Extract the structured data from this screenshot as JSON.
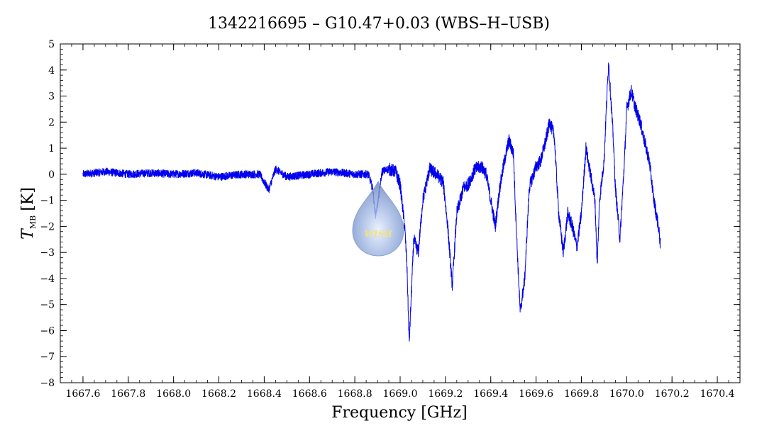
{
  "chart_data": {
    "type": "line",
    "title": "1342216695 – G10.47+0.03 (WBS–H–USB)",
    "xlabel": "Frequency [GHz]",
    "ylabel_main": "T",
    "ylabel_sub": "MB",
    "ylabel_unit": "[K]",
    "xlim": [
      1667.5,
      1670.5
    ],
    "ylim": [
      -8,
      5
    ],
    "x_ticks": [
      1667.6,
      1667.8,
      1668.0,
      1668.2,
      1668.4,
      1668.6,
      1668.8,
      1669.0,
      1669.2,
      1669.4,
      1669.6,
      1669.8,
      1670.0,
      1670.2,
      1670.4
    ],
    "x_tick_labels": [
      "1667.6",
      "1667.8",
      "1668.0",
      "1668.2",
      "1668.4",
      "1668.6",
      "1668.8",
      "1669.0",
      "1669.2",
      "1669.4",
      "1669.6",
      "1669.8",
      "1670.0",
      "1670.2",
      "1670.4"
    ],
    "y_ticks": [
      -8,
      -7,
      -6,
      -5,
      -4,
      -3,
      -2,
      -1,
      0,
      1,
      2,
      3,
      4,
      5
    ],
    "y_tick_labels": [
      "−8",
      "−7",
      "−6",
      "−5",
      "−4",
      "−3",
      "−2",
      "−1",
      "0",
      "1",
      "2",
      "3",
      "4",
      "5"
    ],
    "grid": false,
    "line_color": "#0000ee",
    "logo_text": "WISH",
    "series": [
      {
        "x": [
          1667.6,
          1667.7,
          1667.8,
          1667.9,
          1668.0,
          1668.1,
          1668.2,
          1668.3,
          1668.38,
          1668.42,
          1668.45,
          1668.5,
          1668.6,
          1668.7,
          1668.8,
          1668.86,
          1668.88,
          1668.89,
          1668.9,
          1668.92,
          1668.95,
          1668.98,
          1669.0,
          1669.02,
          1669.03,
          1669.04,
          1669.05,
          1669.06,
          1669.08,
          1669.1,
          1669.13,
          1669.16,
          1669.19,
          1669.21,
          1669.23,
          1669.25,
          1669.28,
          1669.3,
          1669.33,
          1669.36,
          1669.38,
          1669.4,
          1669.42,
          1669.44,
          1669.46,
          1669.48,
          1669.5,
          1669.51,
          1669.52,
          1669.53,
          1669.55,
          1669.57,
          1669.6,
          1669.62,
          1669.64,
          1669.66,
          1669.68,
          1669.7,
          1669.72,
          1669.74,
          1669.76,
          1669.78,
          1669.8,
          1669.82,
          1669.84,
          1669.86,
          1669.87,
          1669.88,
          1669.9,
          1669.91,
          1669.92,
          1669.94,
          1669.95,
          1669.97,
          1669.99,
          1670.0,
          1670.02,
          1670.04,
          1670.06,
          1670.08,
          1670.1,
          1670.12,
          1670.14,
          1670.15
        ],
        "y": [
          0,
          0.1,
          0,
          0.05,
          0,
          0.05,
          -0.1,
          0,
          0,
          -0.6,
          0.2,
          -0.1,
          0,
          0.1,
          0,
          0.0,
          -0.6,
          -1.6,
          -1.2,
          0.1,
          0.2,
          0.1,
          -0.4,
          -2.0,
          -3.5,
          -6.5,
          -4.5,
          -2.5,
          -3.0,
          -1.0,
          0.2,
          0.0,
          -0.3,
          -2.0,
          -4.3,
          -1.5,
          -0.5,
          -0.4,
          0.2,
          0.3,
          0.0,
          -1.0,
          -2.0,
          -0.5,
          0.5,
          1.3,
          0.8,
          -1.5,
          -3.5,
          -5.3,
          -4.0,
          -0.5,
          0.3,
          0.5,
          1.2,
          2.0,
          1.5,
          -1.5,
          -3.0,
          -1.5,
          -2.0,
          -2.8,
          -1.5,
          1.0,
          0.0,
          -1.0,
          -3.5,
          -1.0,
          0.5,
          2.5,
          4.3,
          1.5,
          -0.5,
          -2.5,
          0.5,
          2.5,
          3.2,
          2.5,
          2.0,
          1.2,
          0.5,
          -1.0,
          -2.0,
          -2.8
        ]
      }
    ]
  }
}
